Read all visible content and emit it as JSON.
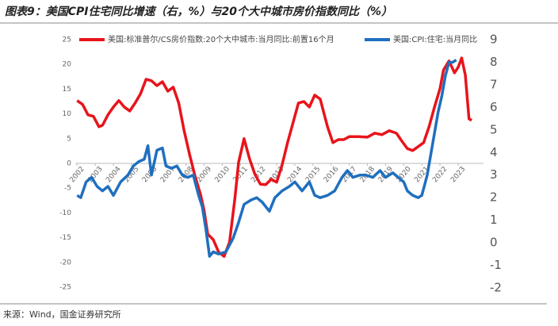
{
  "chart_data": {
    "type": "line",
    "title": "图表9：美国CPI住宅同比增速（右，%）与20个大中城市房价指数同比（%）",
    "source": "来源：Wind，国金证券研究所",
    "legend": "top",
    "xlim": [
      2001.9,
      2024.4
    ],
    "xticks": [
      2002,
      2003,
      2004,
      2005,
      2006,
      2007,
      2008,
      2009,
      2010,
      2011,
      2012,
      2013,
      2014,
      2015,
      2016,
      2017,
      2018,
      2019,
      2020,
      2021,
      2022,
      2023
    ],
    "ylim": [
      -25,
      25
    ],
    "yticks": [
      -25,
      -20,
      -15,
      -10,
      -5,
      0,
      5,
      10,
      15,
      20,
      25
    ],
    "y2lim": [
      -2,
      9
    ],
    "y2ticks": [
      -2,
      -1,
      0,
      1,
      2,
      3,
      4,
      5,
      6,
      7,
      8,
      9
    ],
    "series": [
      {
        "name": "美国:标准普尔/CS房价指数:20个大中城市:当月同比:前置16个月",
        "color": "#e8141b",
        "axis": "y",
        "x": [
          2002.0,
          2002.3,
          2002.6,
          2002.9,
          2003.2,
          2003.4,
          2003.7,
          2004.0,
          2004.3,
          2004.6,
          2004.9,
          2005.2,
          2005.5,
          2005.8,
          2006.1,
          2006.4,
          2006.7,
          2007.0,
          2007.3,
          2007.6,
          2007.9,
          2008.2,
          2008.5,
          2008.8,
          2009.0,
          2009.2,
          2009.5,
          2009.8,
          2010.1,
          2010.4,
          2010.7,
          2010.9,
          2011.2,
          2011.5,
          2011.8,
          2012.1,
          2012.4,
          2012.7,
          2013.0,
          2013.3,
          2013.6,
          2013.9,
          2014.2,
          2014.5,
          2014.8,
          2015.1,
          2015.4,
          2015.8,
          2016.1,
          2016.4,
          2016.7,
          2017.0,
          2017.5,
          2018.0,
          2018.4,
          2018.8,
          2019.2,
          2019.6,
          2019.9,
          2020.2,
          2020.5,
          2020.8,
          2021.1,
          2021.4,
          2021.7,
          2022.0,
          2022.2,
          2022.5,
          2022.8,
          2023.0,
          2023.2,
          2023.4,
          2023.6,
          2023.75
        ],
        "values": [
          12.7,
          11.9,
          9.8,
          9.5,
          7.4,
          7.7,
          9.8,
          11.4,
          12.7,
          11.4,
          10.6,
          12.2,
          14.1,
          17,
          16.7,
          15.7,
          16.5,
          14.6,
          15.4,
          12.2,
          6.6,
          1.8,
          -2.6,
          -6.2,
          -9.5,
          -14.3,
          -15.4,
          -17.9,
          -18.8,
          -15.9,
          -7,
          0.2,
          5,
          1,
          -2.2,
          -4.2,
          -4.3,
          -3.2,
          -3.8,
          -0.3,
          4.2,
          8.2,
          12.2,
          12.5,
          11.4,
          13.8,
          13,
          7.4,
          4.2,
          4.8,
          4.8,
          5.4,
          5.4,
          5.3,
          6.1,
          5.8,
          6.6,
          6.1,
          4.5,
          3,
          2.6,
          3.4,
          4.2,
          7.4,
          11.4,
          15.1,
          18.9,
          20.7,
          18.3,
          19.4,
          21.3,
          17.8,
          9,
          8.7
        ]
      },
      {
        "name": "美国:CPI:住宅:当月同比",
        "color": "#1f6fbf",
        "axis": "y2",
        "x": [
          2002.0,
          2002.2,
          2002.5,
          2002.8,
          2003.1,
          2003.4,
          2003.7,
          2004.0,
          2004.4,
          2004.8,
          2005.1,
          2005.4,
          2005.7,
          2005.9,
          2006.1,
          2006.4,
          2006.7,
          2006.9,
          2007.2,
          2007.5,
          2007.8,
          2008.1,
          2008.4,
          2008.7,
          2008.9,
          2009.1,
          2009.3,
          2009.5,
          2009.8,
          2010.2,
          2010.6,
          2010.9,
          2011.2,
          2011.6,
          2011.9,
          2012.2,
          2012.6,
          2012.9,
          2013.3,
          2013.7,
          2014.0,
          2014.4,
          2014.8,
          2015.1,
          2015.4,
          2015.8,
          2016.2,
          2016.6,
          2016.9,
          2017.2,
          2017.6,
          2017.9,
          2018.3,
          2018.7,
          2019.0,
          2019.4,
          2019.7,
          2020.0,
          2020.2,
          2020.5,
          2020.8,
          2021.0,
          2021.3,
          2021.6,
          2021.9,
          2022.1,
          2022.3,
          2022.5,
          2022.7,
          2022.9
        ],
        "values": [
          2.1,
          2.0,
          2.7,
          2.9,
          2.5,
          2.3,
          2.5,
          2.1,
          2.7,
          3.0,
          3.4,
          3.6,
          3.7,
          4.3,
          3.0,
          4.1,
          4.2,
          3.4,
          3.3,
          3.4,
          3.0,
          2.9,
          3.0,
          2.1,
          1.6,
          0.6,
          -0.6,
          -0.4,
          -0.5,
          -0.4,
          0.2,
          0.9,
          1.7,
          1.9,
          2.0,
          1.8,
          1.4,
          2.0,
          2.3,
          2.5,
          2.7,
          2.3,
          2.7,
          2.1,
          2.0,
          2.1,
          2.3,
          2.9,
          3.2,
          2.9,
          3.0,
          3.0,
          2.9,
          3.2,
          2.9,
          3.1,
          2.9,
          2.7,
          2.3,
          2.1,
          2.0,
          2.1,
          3.0,
          4.4,
          5.8,
          6.5,
          7.4,
          8.0,
          8.0,
          8.1
        ]
      }
    ]
  }
}
